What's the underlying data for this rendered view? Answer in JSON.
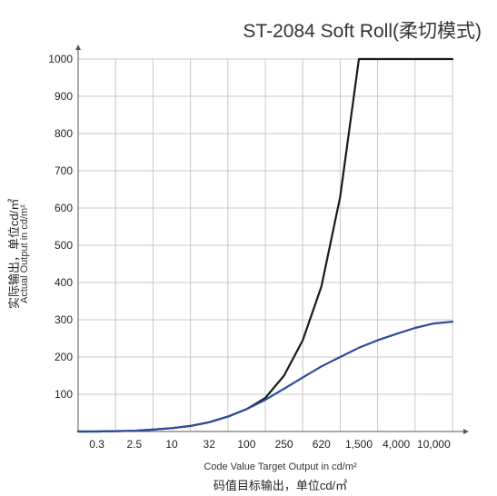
{
  "chart_data": {
    "type": "line",
    "title": "ST-2084 Soft Roll(柔切模式)",
    "xlabel": "Code Value Target Output in cd/m²",
    "xlabel_cn": "码值目标输出，单位cd/㎡",
    "ylabel": "Actual Output in cd/m²",
    "ylabel_cn": "实际输出，单位cd/㎡",
    "categories": [
      "0.3",
      "2.5",
      "10",
      "32",
      "100",
      "250",
      "620",
      "1,500",
      "4,000",
      "10,000"
    ],
    "ylim": [
      0,
      1000
    ],
    "yticks": [
      "100",
      "200",
      "300",
      "400",
      "500",
      "600",
      "700",
      "800",
      "900",
      "1000"
    ],
    "grid": true,
    "series": [
      {
        "color": "#1a1a1a",
        "x": [
          0,
          0.5,
          1,
          1.5,
          2,
          2.5,
          3,
          3.5,
          4,
          4.5,
          5,
          5.5,
          6,
          6.5,
          7,
          7.5,
          8,
          8.5,
          9,
          9.5,
          10
        ],
        "values": [
          0,
          0,
          1,
          2,
          5,
          9,
          15,
          25,
          40,
          60,
          90,
          150,
          245,
          390,
          630,
          1000,
          1000,
          1000,
          1000,
          1000,
          1000
        ]
      },
      {
        "color": "#2e4a9e",
        "x": [
          0,
          0.5,
          1,
          1.5,
          2,
          2.5,
          3,
          3.5,
          4,
          4.5,
          5,
          5.5,
          6,
          6.5,
          7,
          7.5,
          8,
          8.5,
          9,
          9.5,
          10
        ],
        "values": [
          0,
          0,
          1,
          2,
          5,
          9,
          15,
          25,
          40,
          60,
          85,
          115,
          145,
          175,
          200,
          225,
          245,
          262,
          278,
          290,
          295
        ]
      }
    ]
  }
}
